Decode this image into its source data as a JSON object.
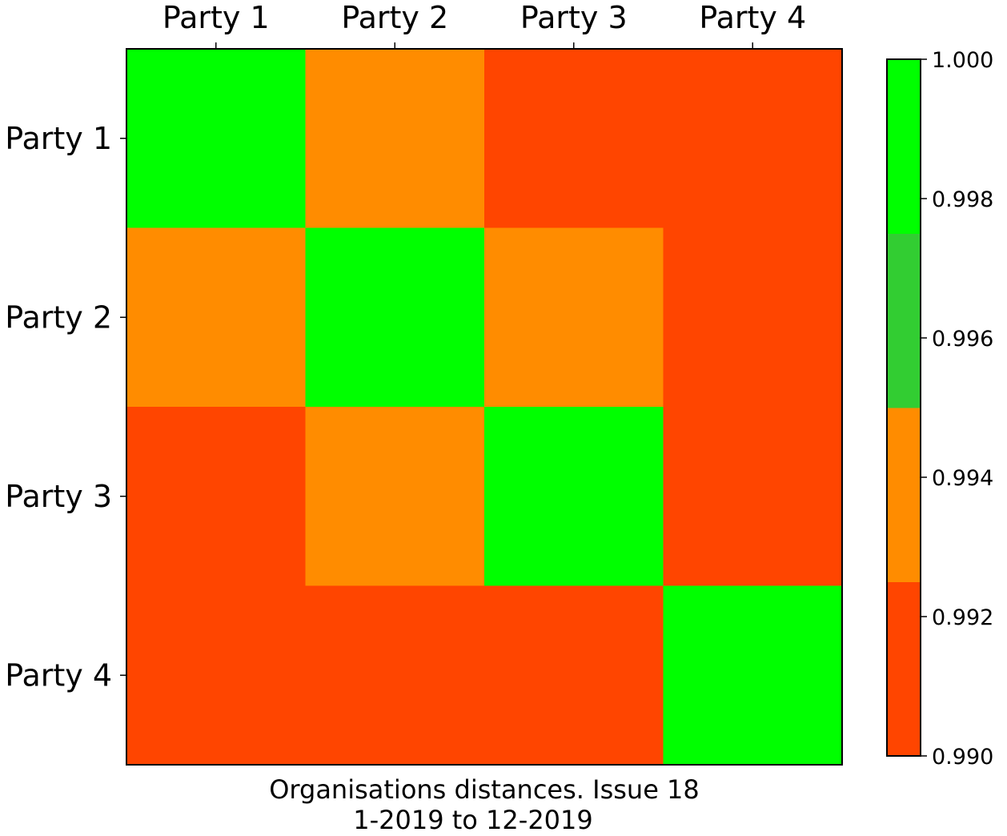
{
  "chart_data": {
    "type": "heatmap",
    "x_labels": [
      "Party 1",
      "Party 2",
      "Party 3",
      "Party 4"
    ],
    "y_labels": [
      "Party 1",
      "Party 2",
      "Party 3",
      "Party 4"
    ],
    "values": [
      [
        1.0,
        0.994,
        0.991,
        0.991
      ],
      [
        0.994,
        1.0,
        0.994,
        0.991
      ],
      [
        0.991,
        0.994,
        1.0,
        0.991
      ],
      [
        0.991,
        0.991,
        0.991,
        1.0
      ]
    ],
    "title": "",
    "xlabel": "Organisations distances. Issue 18",
    "subtitle": "1-2019 to 12-2019",
    "colorbar": {
      "range": [
        0.99,
        1.0
      ],
      "ticks": [
        "1.000",
        "0.998",
        "0.996",
        "0.994",
        "0.992",
        "0.990"
      ],
      "bands": [
        {
          "from": 0.99,
          "to": 0.9925,
          "color": "#ff4500"
        },
        {
          "from": 0.9925,
          "to": 0.995,
          "color": "#ff8c00"
        },
        {
          "from": 0.995,
          "to": 0.9975,
          "color": "#32cd32"
        },
        {
          "from": 0.9975,
          "to": 1.0,
          "color": "#00ff00"
        }
      ]
    },
    "grid": false,
    "x_tick_position": "top",
    "legend": "colorbar-right"
  }
}
